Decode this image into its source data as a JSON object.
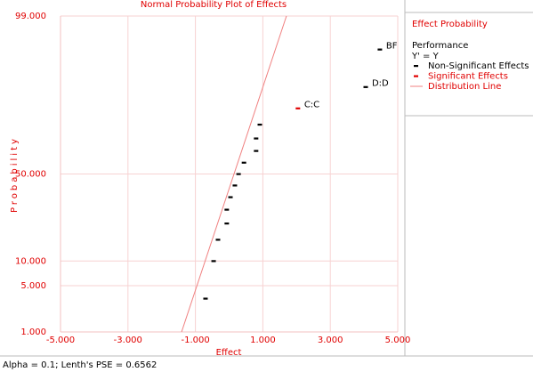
{
  "chart_data": {
    "type": "scatter",
    "title": "Normal Probability Plot of Effects",
    "x_label": "Effect",
    "y_label": "Probability",
    "yscale": "normal-probability",
    "xlim": [
      -5,
      5
    ],
    "ylim": [
      1,
      99
    ],
    "xticks": [
      {
        "value": -5,
        "label": "-5.000"
      },
      {
        "value": -3,
        "label": "-3.000"
      },
      {
        "value": -1,
        "label": "-1.000"
      },
      {
        "value": 1,
        "label": "1.000"
      },
      {
        "value": 3,
        "label": "3.000"
      },
      {
        "value": 5,
        "label": "5.000"
      }
    ],
    "yticks": [
      {
        "value": 1,
        "label": "1.000"
      },
      {
        "value": 5,
        "label": "5.000"
      },
      {
        "value": 10,
        "label": "10.000"
      },
      {
        "value": 50,
        "label": "50.000"
      },
      {
        "value": 99,
        "label": "99.000"
      }
    ],
    "grid": true,
    "grid_color": "#f7d2d2",
    "legend": {
      "title": "Effect Probability",
      "heading": "Performance",
      "subheading": "Y' = Y",
      "position": "right"
    },
    "series": [
      {
        "name": "Non-Significant Effects",
        "color": "#000000",
        "kind": "points",
        "x": [
          -0.7,
          -0.46,
          -0.33,
          -0.07,
          -0.07,
          0.04,
          0.17,
          0.28,
          0.44,
          0.8,
          0.8,
          0.91,
          4.05,
          4.47
        ],
        "values": [
          3.33,
          10,
          16.67,
          23.33,
          30,
          36.67,
          43.33,
          50,
          56.67,
          63.33,
          70,
          76.67,
          90,
          96.67
        ],
        "labels": [
          null,
          null,
          null,
          null,
          null,
          null,
          null,
          null,
          null,
          null,
          null,
          null,
          "D:D",
          "BF"
        ]
      },
      {
        "name": "Significant Effects",
        "color": "#e00000",
        "kind": "points",
        "x": [
          2.04
        ],
        "values": [
          83.33
        ],
        "labels": [
          "C:C"
        ]
      },
      {
        "name": "Distribution Line",
        "color": "#f08080",
        "kind": "line",
        "x": [
          -1.41,
          1.7
        ],
        "values": [
          1,
          99
        ]
      }
    ]
  },
  "footer": "Alpha = 0.1; Lenth's PSE = 0.6562"
}
